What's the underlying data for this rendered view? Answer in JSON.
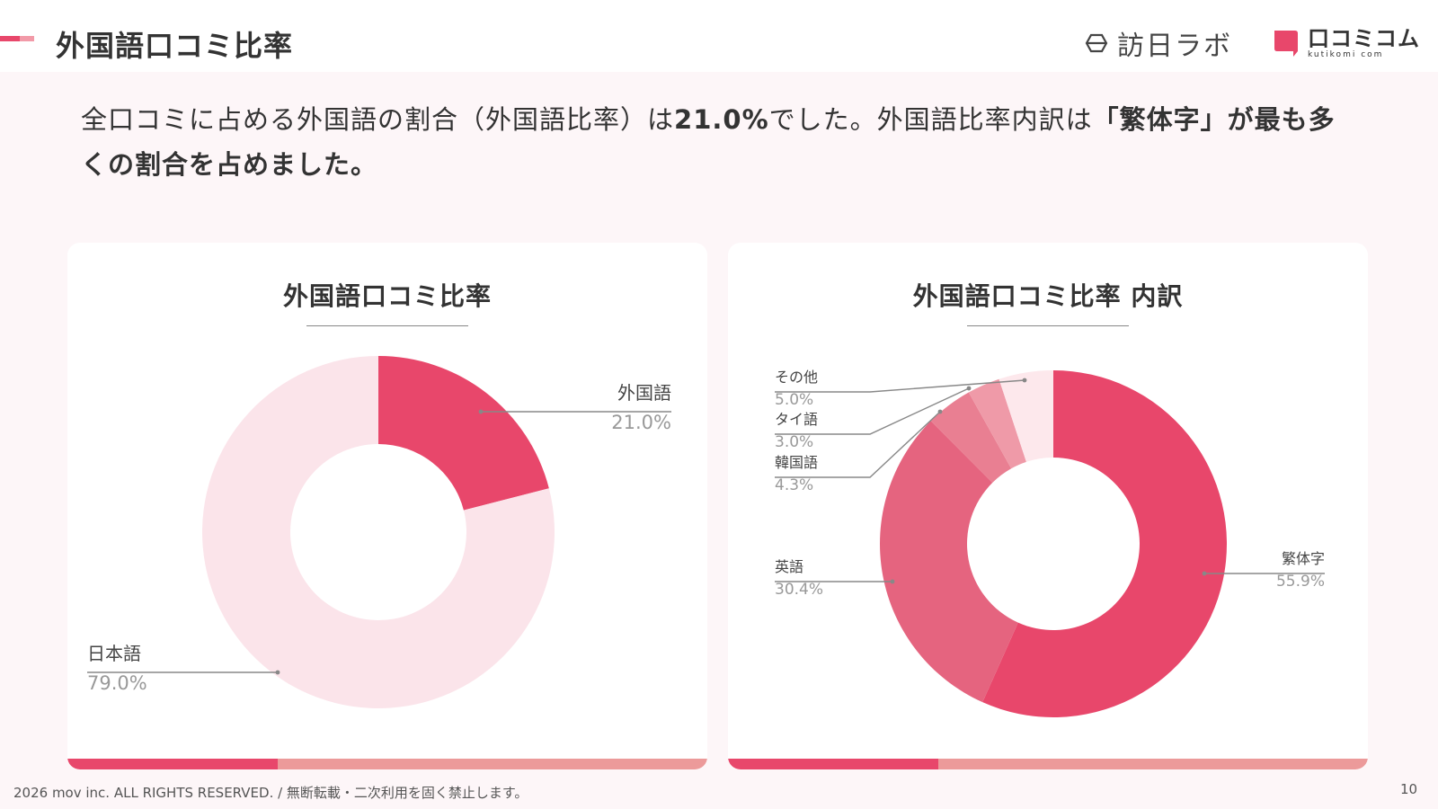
{
  "header": {
    "title": "外国語口コミ比率",
    "logo_houjin": "訪日ラボ",
    "logo_kuti": "口コミコム",
    "logo_kuti_sub": "kutikomi com"
  },
  "lead": {
    "part1": "全口コミに占める外国語の割合（外国語比率）は",
    "highlight1": "21.0%",
    "part2": "でした。外国語比率内訳は",
    "highlight2": "「繁体字」が最も多くの割合を占めました。"
  },
  "colors": {
    "primary": "#e8476b",
    "light": "#fbe4ea",
    "series": [
      "#e8476b",
      "#e5647f",
      "#e97f92",
      "#ef9aa8",
      "#f7bfc7",
      "#fde8ec"
    ]
  },
  "chart_data": [
    {
      "type": "pie",
      "title": "外国語口コミ比率",
      "categories": [
        "外国語",
        "日本語"
      ],
      "values": [
        21.0,
        79.0
      ],
      "value_labels": [
        "21.0%",
        "79.0%"
      ],
      "donut": true
    },
    {
      "type": "pie",
      "title": "外国語口コミ比率 内訳",
      "categories": [
        "繁体字",
        "英語",
        "韓国語",
        "タイ語",
        "その他"
      ],
      "values": [
        55.9,
        30.4,
        4.3,
        3.0,
        5.0
      ],
      "value_labels": [
        "55.9%",
        "30.4%",
        "4.3%",
        "3.0%",
        "5.0%"
      ],
      "donut": true
    }
  ],
  "footer": {
    "copyright": "2026 mov inc. ALL RIGHTS RESERVED. / 無断転載・二次利用を固く禁止します。",
    "page_number": "10"
  }
}
